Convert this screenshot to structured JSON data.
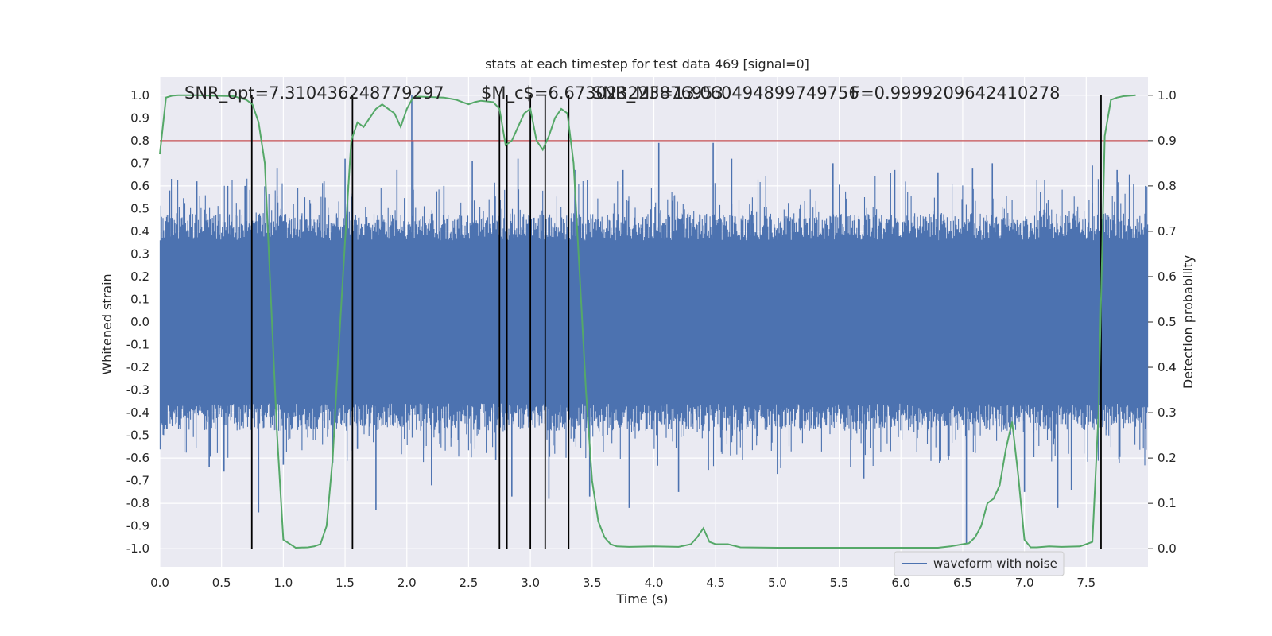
{
  "chart_data": {
    "type": "line",
    "title": "stats at each timestep for test data 469 [signal=0]",
    "xlabel": "Time (s)",
    "ylabel": "Whitened strain",
    "y2label": "Detection probability",
    "xlim": [
      0.0,
      8.0
    ],
    "ylim": [
      -1.08,
      1.08
    ],
    "y2lim": [
      -0.04,
      1.04
    ],
    "x_ticks": [
      "0.0",
      "0.5",
      "1.0",
      "1.5",
      "2.0",
      "2.5",
      "3.0",
      "3.5",
      "4.0",
      "4.5",
      "5.0",
      "5.5",
      "6.0",
      "6.5",
      "7.0",
      "7.5"
    ],
    "y_ticks": [
      "1.0",
      "0.9",
      "0.8",
      "0.7",
      "0.6",
      "0.5",
      "0.4",
      "0.3",
      "0.2",
      "0.1",
      "0.0",
      "-0.1",
      "-0.2",
      "-0.3",
      "-0.4",
      "-0.5",
      "-0.6",
      "-0.7",
      "-0.8",
      "-0.9",
      "-1.0"
    ],
    "y2_ticks": [
      "1.0",
      "0.9",
      "0.8",
      "0.7",
      "0.6",
      "0.5",
      "0.4",
      "0.3",
      "0.2",
      "0.1",
      "0.0"
    ],
    "grid": true,
    "legend": {
      "position": "lower-right",
      "entries": [
        "waveform with noise"
      ]
    },
    "annotations": [
      "SNR_opt=7.310436248779297",
      "$M_c$=6.673023223876953",
      "SNR_MF=13.060494899749756",
      "F=0.9999209642410278"
    ],
    "threshold": 0.9,
    "series": [
      {
        "name": "waveform with noise",
        "axis": "left",
        "color": "#4c72b0",
        "style": "noise envelope",
        "typical_amplitude": 0.4,
        "peaks": [
          {
            "x": 0.08,
            "y": 0.58
          },
          {
            "x": 0.13,
            "y": -0.45
          },
          {
            "x": 0.3,
            "y": 0.62
          },
          {
            "x": 0.4,
            "y": -0.64
          },
          {
            "x": 0.52,
            "y": -0.66
          },
          {
            "x": 0.55,
            "y": 0.6
          },
          {
            "x": 0.69,
            "y": 0.6
          },
          {
            "x": 0.8,
            "y": -0.84
          },
          {
            "x": 0.95,
            "y": 0.68
          },
          {
            "x": 1.0,
            "y": -0.63
          },
          {
            "x": 1.33,
            "y": 0.62
          },
          {
            "x": 1.4,
            "y": -0.62
          },
          {
            "x": 1.5,
            "y": 0.72
          },
          {
            "x": 1.6,
            "y": -0.56
          },
          {
            "x": 1.75,
            "y": -0.83
          },
          {
            "x": 1.92,
            "y": 0.67
          },
          {
            "x": 2.04,
            "y": 1.0
          },
          {
            "x": 2.05,
            "y": 0.8
          },
          {
            "x": 2.2,
            "y": -0.72
          },
          {
            "x": 2.3,
            "y": 0.6
          },
          {
            "x": 2.53,
            "y": 0.71
          },
          {
            "x": 2.72,
            "y": -0.61
          },
          {
            "x": 2.85,
            "y": -0.77
          },
          {
            "x": 2.9,
            "y": 0.72
          },
          {
            "x": 3.15,
            "y": -0.78
          },
          {
            "x": 3.36,
            "y": 0.67
          },
          {
            "x": 3.48,
            "y": -0.77
          },
          {
            "x": 3.75,
            "y": 0.67
          },
          {
            "x": 3.8,
            "y": -0.82
          },
          {
            "x": 4.04,
            "y": 0.79
          },
          {
            "x": 4.2,
            "y": -0.75
          },
          {
            "x": 4.48,
            "y": 0.79
          },
          {
            "x": 4.63,
            "y": 0.72
          },
          {
            "x": 5.0,
            "y": -0.67
          },
          {
            "x": 5.45,
            "y": 0.7
          },
          {
            "x": 5.7,
            "y": -0.69
          },
          {
            "x": 5.95,
            "y": 0.67
          },
          {
            "x": 6.3,
            "y": 0.66
          },
          {
            "x": 6.53,
            "y": -0.98
          },
          {
            "x": 6.58,
            "y": 0.68
          },
          {
            "x": 6.74,
            "y": 0.7
          },
          {
            "x": 7.0,
            "y": -0.75
          },
          {
            "x": 7.27,
            "y": -0.82
          },
          {
            "x": 7.38,
            "y": -0.74
          },
          {
            "x": 7.55,
            "y": 0.69
          },
          {
            "x": 7.75,
            "y": 0.67
          },
          {
            "x": 7.85,
            "y": 0.65
          },
          {
            "x": 7.98,
            "y": 0.6
          }
        ]
      },
      {
        "name": "",
        "axis": "right",
        "color": "#55a868",
        "x": [
          0.0,
          0.05,
          0.1,
          0.15,
          0.3,
          0.6,
          0.7,
          0.75,
          0.8,
          0.85,
          0.9,
          0.95,
          1.0,
          1.1,
          1.2,
          1.25,
          1.3,
          1.35,
          1.4,
          1.45,
          1.5,
          1.55,
          1.6,
          1.65,
          1.7,
          1.75,
          1.8,
          1.85,
          1.9,
          1.95,
          2.0,
          2.05,
          2.1,
          2.2,
          2.3,
          2.4,
          2.45,
          2.5,
          2.55,
          2.6,
          2.7,
          2.75,
          2.8,
          2.85,
          2.9,
          2.95,
          3.0,
          3.05,
          3.1,
          3.15,
          3.2,
          3.25,
          3.3,
          3.35,
          3.4,
          3.45,
          3.5,
          3.55,
          3.6,
          3.65,
          3.7,
          3.8,
          4.0,
          4.2,
          4.3,
          4.35,
          4.4,
          4.45,
          4.5,
          4.6,
          4.7,
          5.0,
          5.5,
          6.0,
          6.3,
          6.4,
          6.5,
          6.55,
          6.6,
          6.65,
          6.7,
          6.75,
          6.8,
          6.85,
          6.9,
          6.95,
          7.0,
          7.05,
          7.1,
          7.2,
          7.3,
          7.45,
          7.5,
          7.55,
          7.6,
          7.65,
          7.7,
          7.75,
          7.8,
          7.9
        ],
        "values": [
          0.87,
          0.995,
          0.999,
          1.0,
          1.0,
          0.998,
          0.99,
          0.98,
          0.94,
          0.85,
          0.55,
          0.25,
          0.02,
          0.002,
          0.003,
          0.005,
          0.01,
          0.05,
          0.2,
          0.45,
          0.68,
          0.9,
          0.94,
          0.93,
          0.95,
          0.97,
          0.98,
          0.97,
          0.96,
          0.93,
          0.97,
          0.995,
          0.997,
          0.996,
          0.995,
          0.99,
          0.985,
          0.98,
          0.985,
          0.988,
          0.985,
          0.97,
          0.89,
          0.9,
          0.93,
          0.96,
          0.97,
          0.9,
          0.88,
          0.91,
          0.95,
          0.97,
          0.96,
          0.85,
          0.6,
          0.35,
          0.15,
          0.06,
          0.025,
          0.01,
          0.005,
          0.004,
          0.005,
          0.004,
          0.01,
          0.025,
          0.045,
          0.015,
          0.01,
          0.01,
          0.003,
          0.002,
          0.002,
          0.002,
          0.002,
          0.005,
          0.01,
          0.012,
          0.025,
          0.05,
          0.1,
          0.11,
          0.14,
          0.22,
          0.28,
          0.16,
          0.02,
          0.003,
          0.003,
          0.005,
          0.004,
          0.005,
          0.01,
          0.015,
          0.3,
          0.91,
          0.99,
          0.995,
          0.998,
          1.0
        ]
      }
    ],
    "vlines_x": [
      0.745,
      1.56,
      2.75,
      2.81,
      3.0,
      3.12,
      3.31,
      7.62
    ],
    "vline_color": "#000000"
  }
}
